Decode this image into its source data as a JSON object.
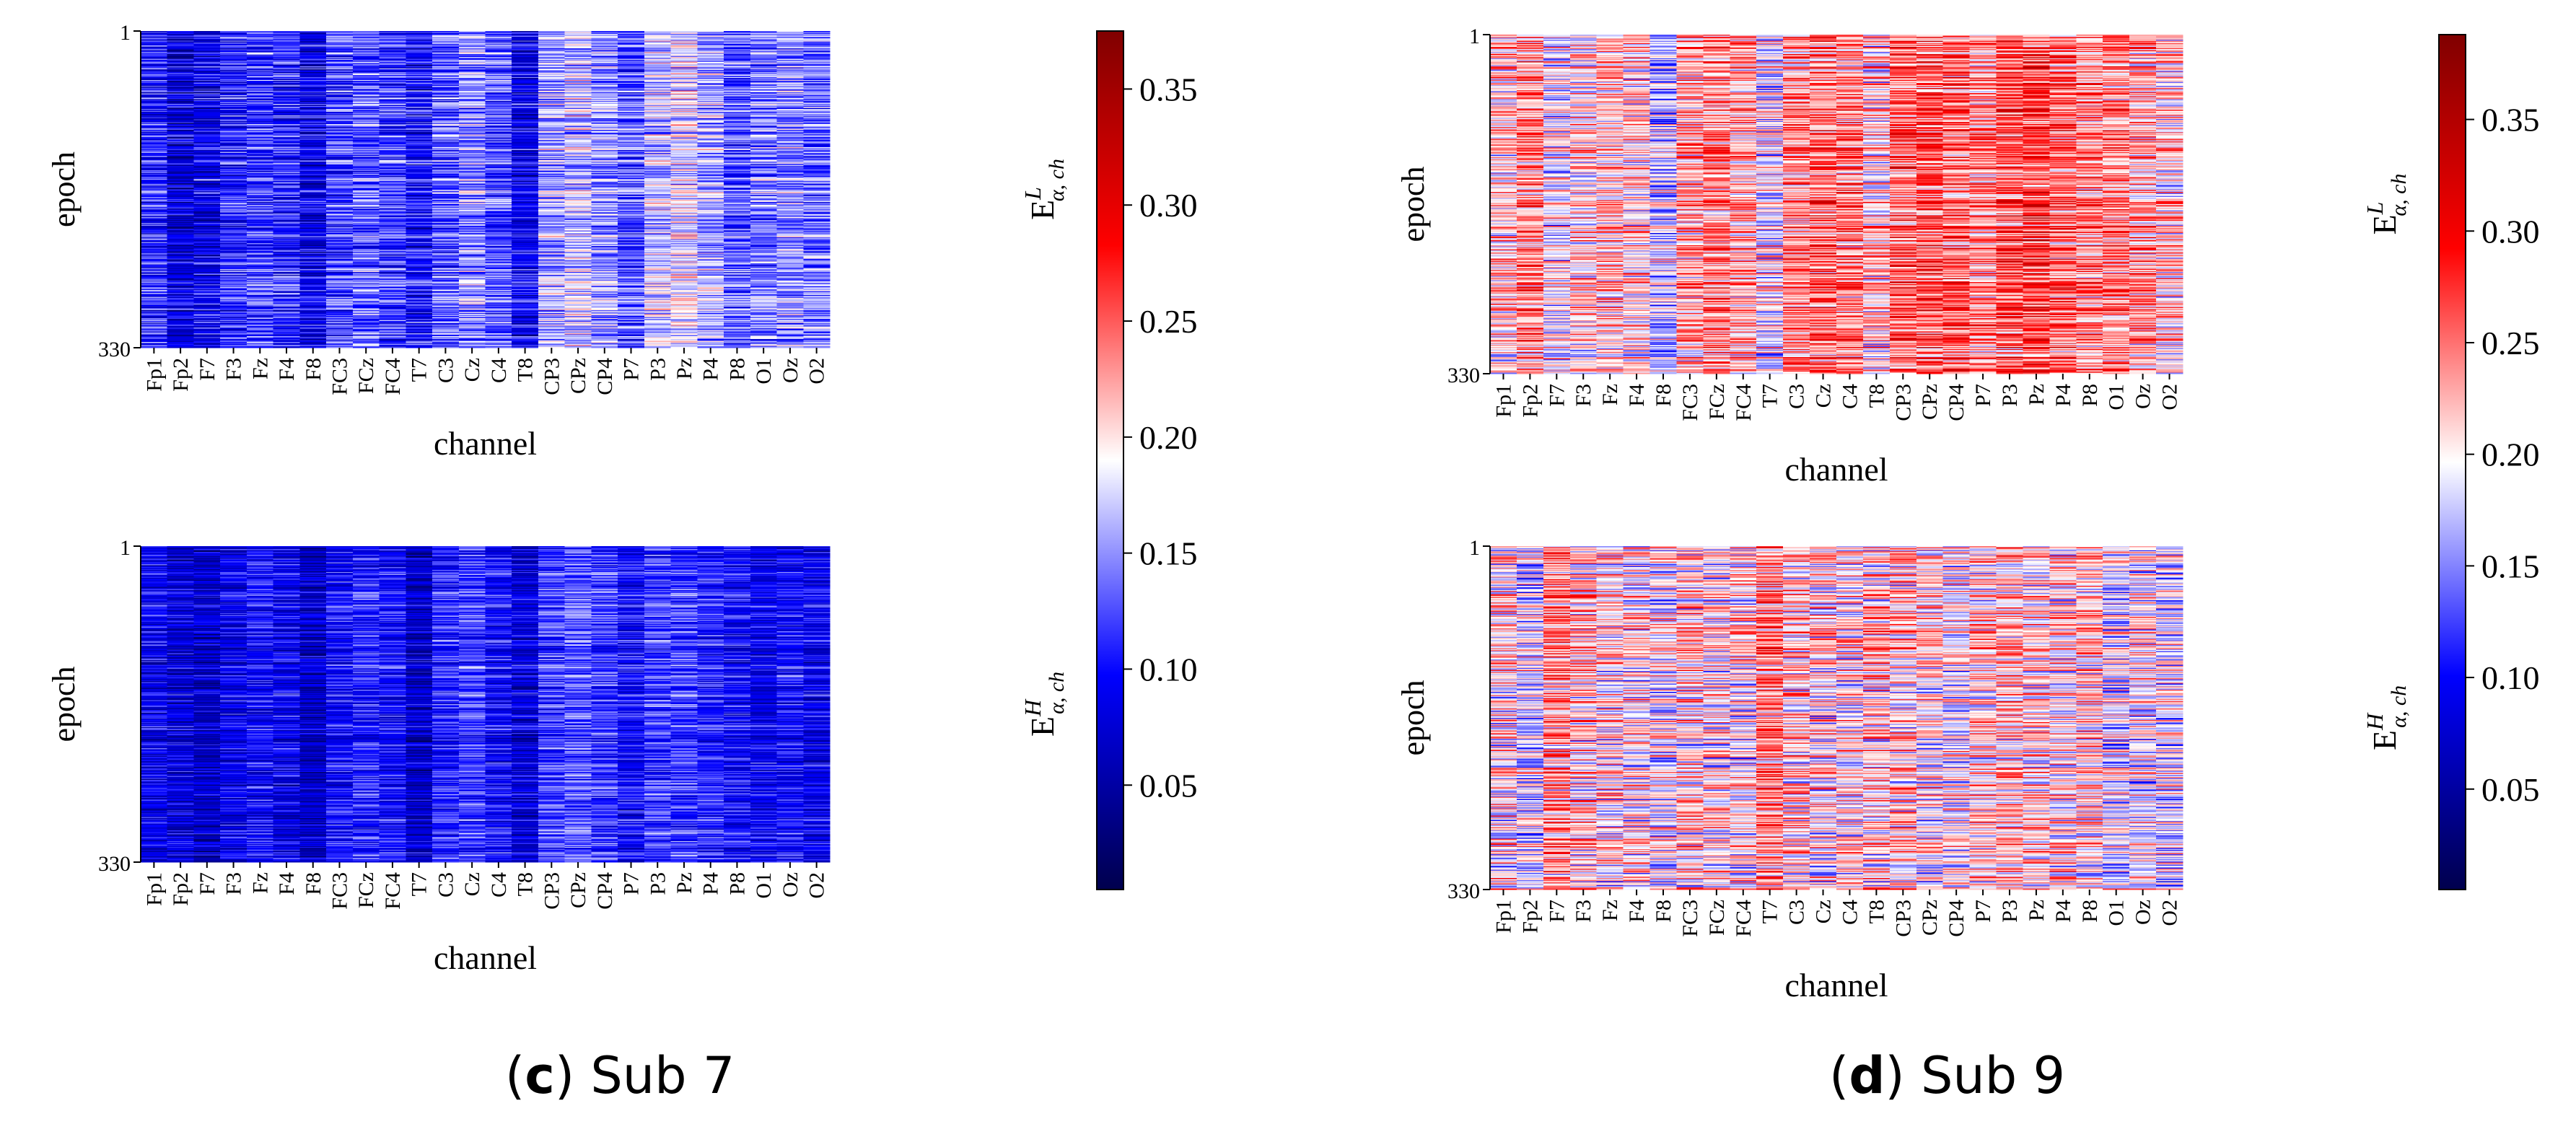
{
  "chart_data": [
    {
      "type": "heatmap",
      "panel": "c",
      "subject": "Sub 7",
      "colormap": "seismic",
      "colorbar": {
        "ticks": [
          0.05,
          0.1,
          0.15,
          0.2,
          0.25,
          0.3,
          0.35
        ],
        "tick_labels": [
          "0.05",
          "0.10",
          "0.15",
          "0.20",
          "0.25",
          "0.30",
          "0.35"
        ],
        "range": [
          0.005,
          0.375
        ]
      },
      "subplots": [
        {
          "name": "low",
          "colorbar_label": {
            "base": "E",
            "sup": "L",
            "sub": "α, ch"
          },
          "xlabel": "channel",
          "ylabel": "epoch",
          "epochs": [
            1,
            330
          ],
          "y_tick_labels": [
            "1",
            "330"
          ],
          "channels": [
            "Fp1",
            "Fp2",
            "F7",
            "F3",
            "Fz",
            "F4",
            "F8",
            "FC3",
            "FCz",
            "FC4",
            "T7",
            "C3",
            "Cz",
            "C4",
            "T8",
            "CP3",
            "CPz",
            "CP4",
            "P7",
            "P3",
            "Pz",
            "P4",
            "P8",
            "O1",
            "Oz",
            "O2"
          ],
          "channel_mean": [
            0.11,
            0.08,
            0.09,
            0.11,
            0.12,
            0.11,
            0.09,
            0.12,
            0.13,
            0.12,
            0.1,
            0.13,
            0.15,
            0.13,
            0.09,
            0.16,
            0.17,
            0.15,
            0.13,
            0.17,
            0.18,
            0.16,
            0.13,
            0.14,
            0.15,
            0.14
          ],
          "spread": 0.055
        },
        {
          "name": "high",
          "colorbar_label": {
            "base": "E",
            "sup": "H",
            "sub": "α, ch"
          },
          "xlabel": "channel",
          "ylabel": "epoch",
          "epochs": [
            1,
            330
          ],
          "y_tick_labels": [
            "1",
            "330"
          ],
          "channels": [
            "Fp1",
            "Fp2",
            "F7",
            "F3",
            "Fz",
            "F4",
            "F8",
            "FC3",
            "FCz",
            "FC4",
            "T7",
            "C3",
            "Cz",
            "C4",
            "T8",
            "CP3",
            "CPz",
            "CP4",
            "P7",
            "P3",
            "Pz",
            "P4",
            "P8",
            "O1",
            "Oz",
            "O2"
          ],
          "channel_mean": [
            0.09,
            0.08,
            0.07,
            0.09,
            0.1,
            0.09,
            0.07,
            0.1,
            0.11,
            0.1,
            0.07,
            0.11,
            0.12,
            0.1,
            0.08,
            0.12,
            0.13,
            0.12,
            0.1,
            0.12,
            0.12,
            0.11,
            0.1,
            0.09,
            0.1,
            0.09
          ],
          "spread": 0.045
        }
      ]
    },
    {
      "type": "heatmap",
      "panel": "d",
      "subject": "Sub 9",
      "colormap": "seismic",
      "colorbar": {
        "ticks": [
          0.05,
          0.1,
          0.15,
          0.2,
          0.25,
          0.3,
          0.35
        ],
        "tick_labels": [
          "0.05",
          "0.10",
          "0.15",
          "0.20",
          "0.25",
          "0.30",
          "0.35"
        ],
        "range": [
          0.005,
          0.388
        ]
      },
      "subplots": [
        {
          "name": "low",
          "colorbar_label": {
            "base": "E",
            "sup": "L",
            "sub": "α, ch"
          },
          "xlabel": "channel",
          "ylabel": "epoch",
          "epochs": [
            1,
            330
          ],
          "y_tick_labels": [
            "1",
            "330"
          ],
          "channels": [
            "Fp1",
            "Fp2",
            "F7",
            "F3",
            "Fz",
            "F4",
            "F8",
            "FC3",
            "FCz",
            "FC4",
            "T7",
            "C3",
            "Cz",
            "C4",
            "T8",
            "CP3",
            "CPz",
            "CP4",
            "P7",
            "P3",
            "Pz",
            "P4",
            "P8",
            "O1",
            "Oz",
            "O2"
          ],
          "channel_mean": [
            0.21,
            0.24,
            0.19,
            0.21,
            0.22,
            0.21,
            0.17,
            0.23,
            0.24,
            0.23,
            0.19,
            0.24,
            0.25,
            0.24,
            0.21,
            0.25,
            0.26,
            0.25,
            0.24,
            0.26,
            0.27,
            0.25,
            0.24,
            0.24,
            0.23,
            0.21
          ],
          "spread": 0.07
        },
        {
          "name": "high",
          "colorbar_label": {
            "base": "E",
            "sup": "H",
            "sub": "α, ch"
          },
          "xlabel": "channel",
          "ylabel": "epoch",
          "epochs": [
            1,
            330
          ],
          "y_tick_labels": [
            "1",
            "330"
          ],
          "channels": [
            "Fp1",
            "Fp2",
            "F7",
            "F3",
            "Fz",
            "F4",
            "F8",
            "FC3",
            "FCz",
            "FC4",
            "T7",
            "C3",
            "Cz",
            "C4",
            "T8",
            "CP3",
            "CPz",
            "CP4",
            "P7",
            "P3",
            "Pz",
            "P4",
            "P8",
            "O1",
            "Oz",
            "O2"
          ],
          "channel_mean": [
            0.2,
            0.18,
            0.23,
            0.21,
            0.2,
            0.2,
            0.19,
            0.21,
            0.2,
            0.2,
            0.24,
            0.21,
            0.2,
            0.2,
            0.21,
            0.21,
            0.2,
            0.19,
            0.21,
            0.22,
            0.21,
            0.2,
            0.21,
            0.18,
            0.19,
            0.18
          ],
          "spread": 0.075
        }
      ]
    }
  ],
  "captions": [
    {
      "letter": "c",
      "open": "(",
      "close": ")",
      "text": " Sub 7"
    },
    {
      "letter": "d",
      "open": "(",
      "close": ")",
      "text": " Sub 9"
    }
  ]
}
